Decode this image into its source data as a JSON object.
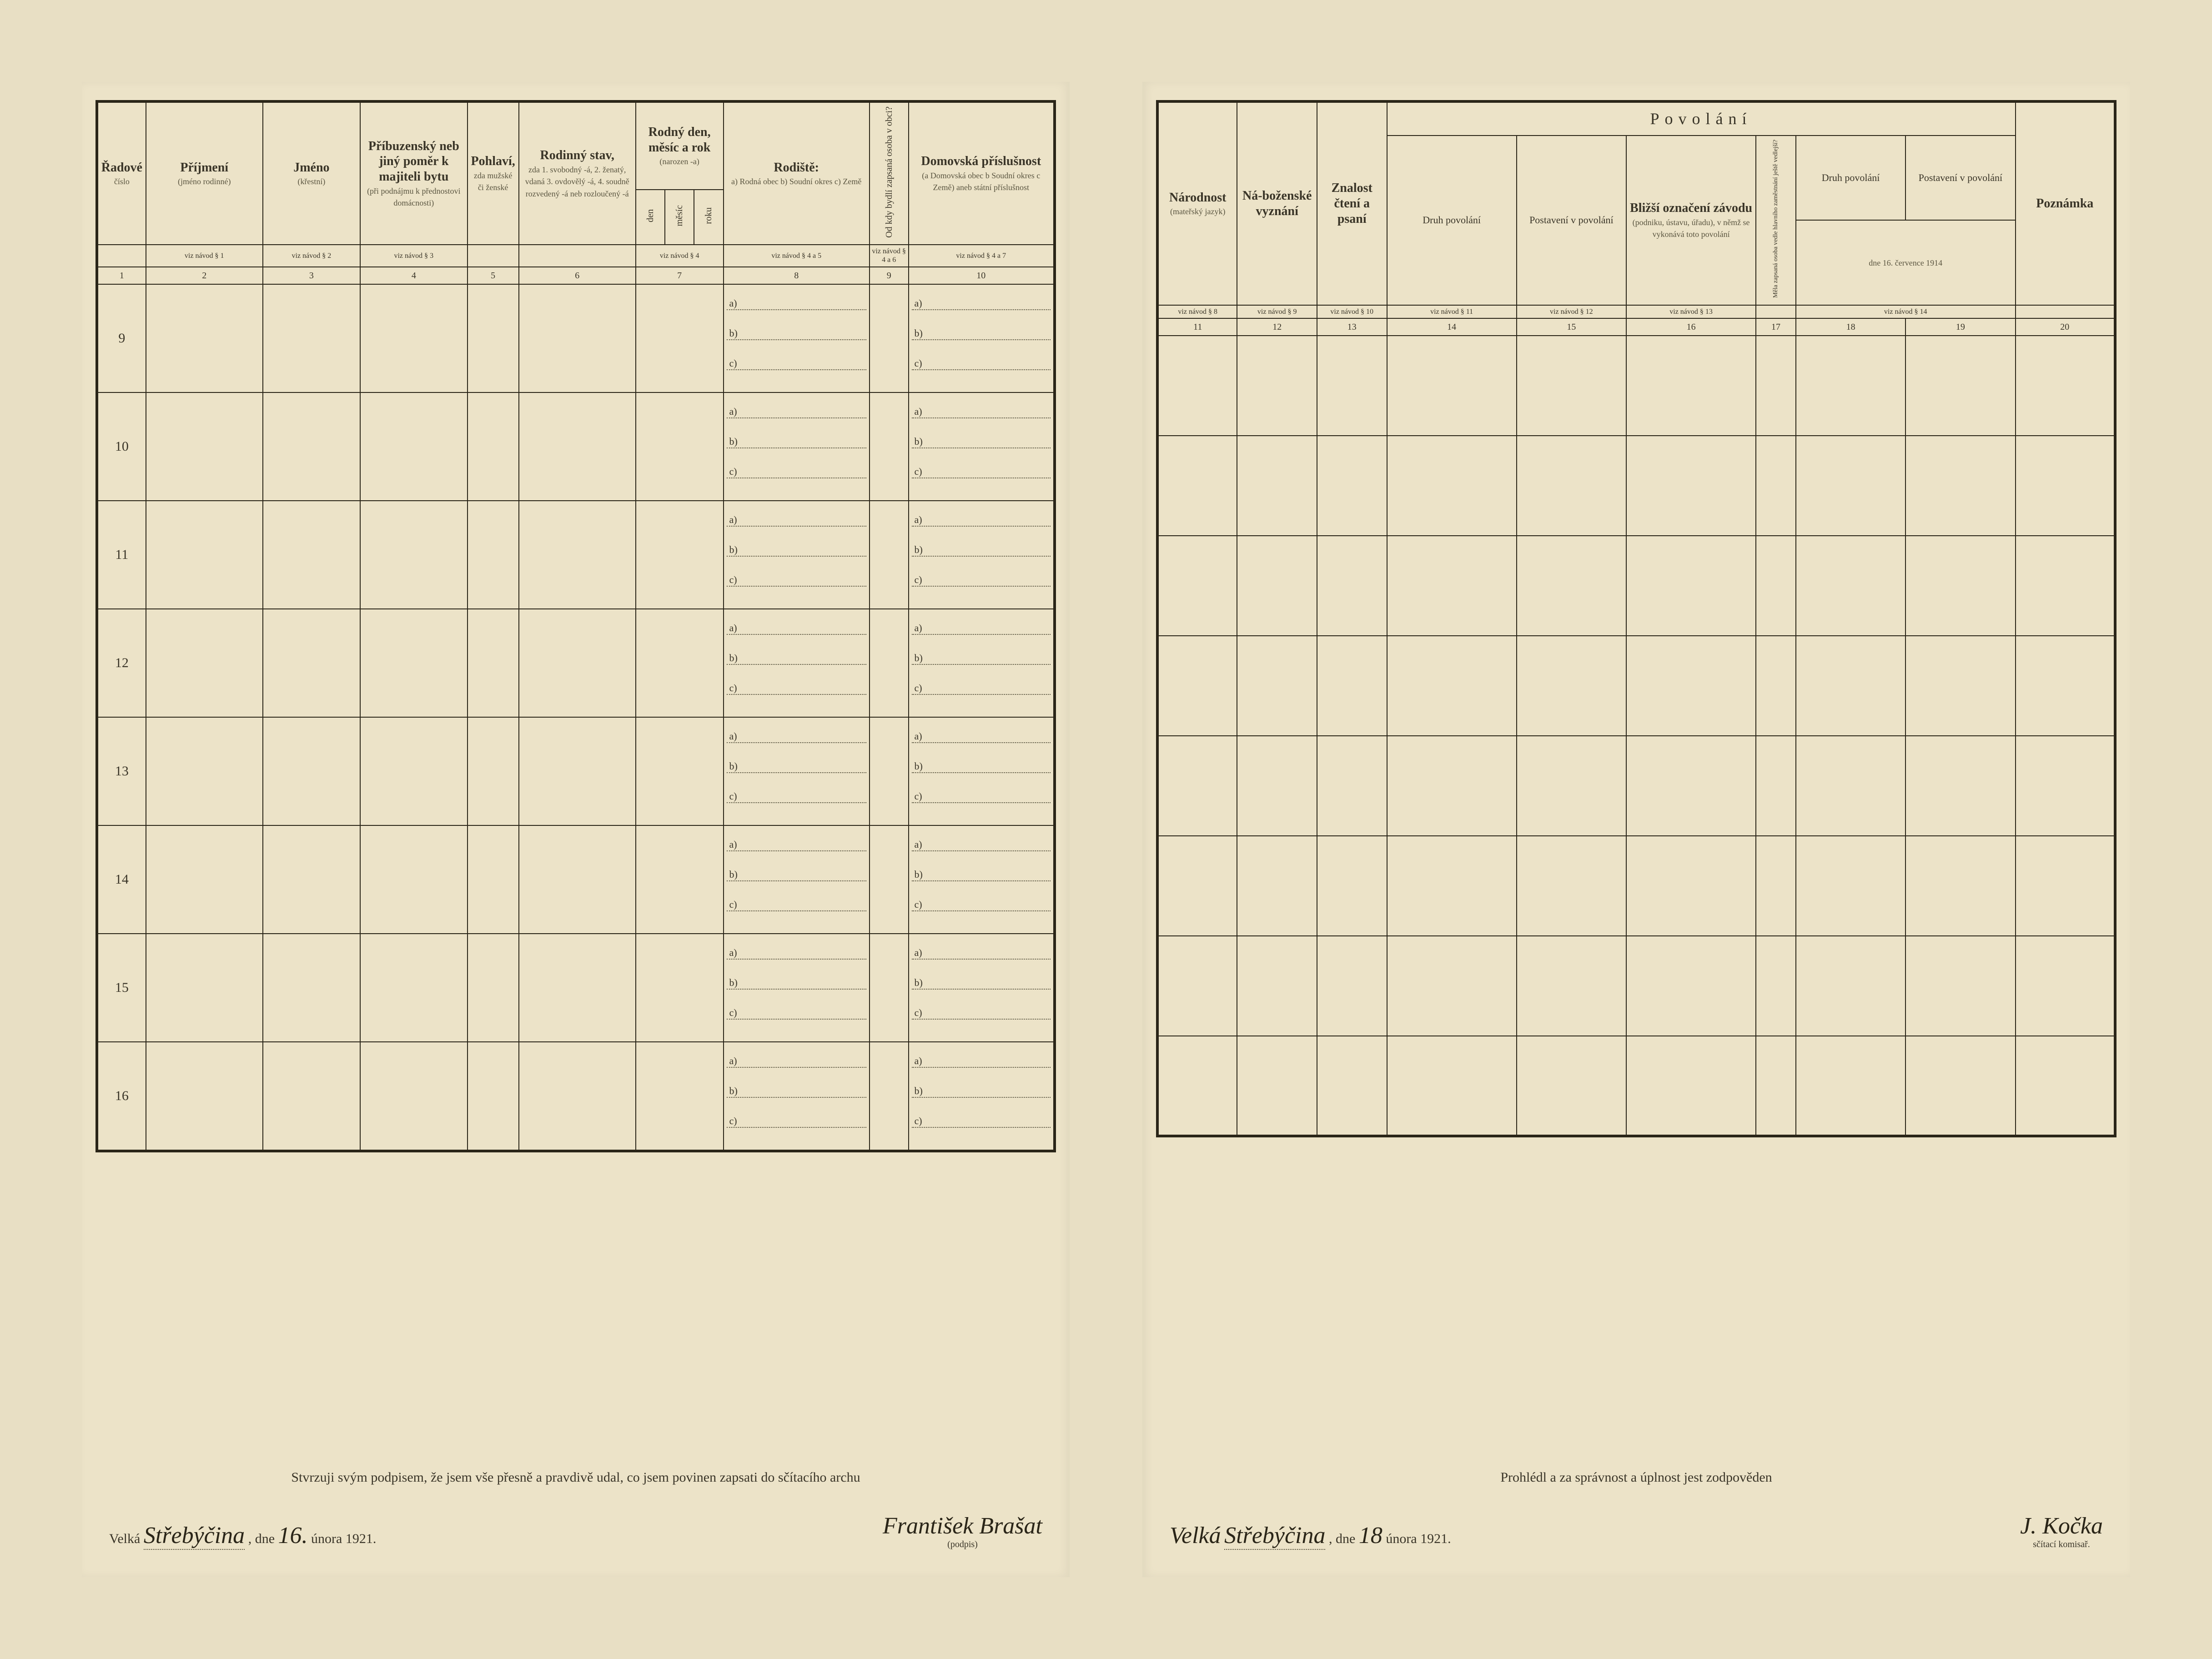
{
  "left": {
    "headers": {
      "col1": {
        "main": "Řadové",
        "sub": "číslo"
      },
      "col2": {
        "main": "Příjmení",
        "sub": "(jméno rodinné)"
      },
      "col3": {
        "main": "Jméno",
        "sub": "(křestní)"
      },
      "col4": {
        "main": "Příbuzenský neb jiný poměr k majiteli bytu",
        "sub": "(při podnájmu k přednostovi domácnosti)"
      },
      "col5": {
        "main": "Pohlaví,",
        "sub": "zda mužské či ženské"
      },
      "col6": {
        "main": "Rodinný stav,",
        "sub": "zda 1. svobodný -á, 2. ženatý, vdaná 3. ovdovělý -á, 4. soudně rozvedený -á neb rozloučený -á"
      },
      "col7": {
        "main": "Rodný den, měsíc a rok",
        "sub": "(narozen -a)",
        "subcols": [
          "den",
          "měsíc",
          "roku"
        ]
      },
      "col8": {
        "main": "Rodiště:",
        "sub": "a) Rodná obec b) Soudní okres c) Země"
      },
      "col9": "Od kdy bydlí zapsaná osoba v obci?",
      "col10": {
        "main": "Domovská příslušnost",
        "sub": "(a Domovská obec b Soudní okres c Země) aneb státní příslušnost"
      }
    },
    "navod": [
      "",
      "viz návod § 1",
      "viz návod § 2",
      "viz návod § 3",
      "",
      "",
      "viz návod § 4",
      "viz návod § 4 a 5",
      "viz návod § 4 a 6",
      "viz návod § 4 a 7"
    ],
    "colnums": [
      "1",
      "2",
      "3",
      "4",
      "5",
      "6",
      "7",
      "8",
      "9",
      "10"
    ],
    "rows": [
      "9",
      "10",
      "11",
      "12",
      "13",
      "14",
      "15",
      "16"
    ],
    "abc": [
      "a)",
      "b)",
      "c)"
    ],
    "footer": {
      "attest": "Stvrzuji svým podpisem, že jsem vše přesně a pravdivě udal, co jsem povinen zapsati do sčítacího archu",
      "place_prefix": "Velká",
      "place_hand": "Střebýčina",
      "dne": ", dne",
      "day_hand": "16.",
      "month_year": "února 1921.",
      "sig_hand": "František Brašat",
      "sig_label": "(podpis)"
    }
  },
  "right": {
    "headers": {
      "col11": {
        "main": "Národnost",
        "sub": "(mateřský jazyk)"
      },
      "col12": {
        "main": "Ná-boženské vyznání"
      },
      "col13": {
        "main": "Znalost čtení a psaní"
      },
      "povolani": "Povolání",
      "col14": "Druh povolání",
      "col15": "Postavení v povolání",
      "col16": {
        "main": "Bližší označení závodu",
        "sub": "(podniku, ústavu, úřadu), v němž se vykonává toto povolání"
      },
      "col17_vert": "Měla zapsaná osoba vedle hlavního zaměstnání ještě vedlejší?",
      "col18": "Druh povolání",
      "col19": "Postavení v povolání",
      "col20": "Poznámka",
      "date1914": "dne 16. července 1914"
    },
    "navod": [
      "viz návod § 8",
      "viz návod § 9",
      "viz návod § 10",
      "viz návod § 11",
      "viz návod § 12",
      "viz návod § 13",
      "",
      "viz návod § 14",
      "",
      ""
    ],
    "colnums": [
      "11",
      "12",
      "13",
      "14",
      "15",
      "16",
      "17",
      "18",
      "19",
      "20"
    ],
    "footer": {
      "attest": "Prohlédl a za správnost a úplnost jest zodpověden",
      "place_prefix": "Velká",
      "place_hand": "Střebýčina",
      "dne": ", dne",
      "day_hand": "18",
      "month_year": "února 1921.",
      "sig_hand": "J. Kočka",
      "sig_label": "sčítací komisař."
    }
  },
  "colors": {
    "paper": "#ece3c8",
    "bg": "#e8dfc4",
    "ink": "#2a2518",
    "faint": "#5a5540"
  }
}
